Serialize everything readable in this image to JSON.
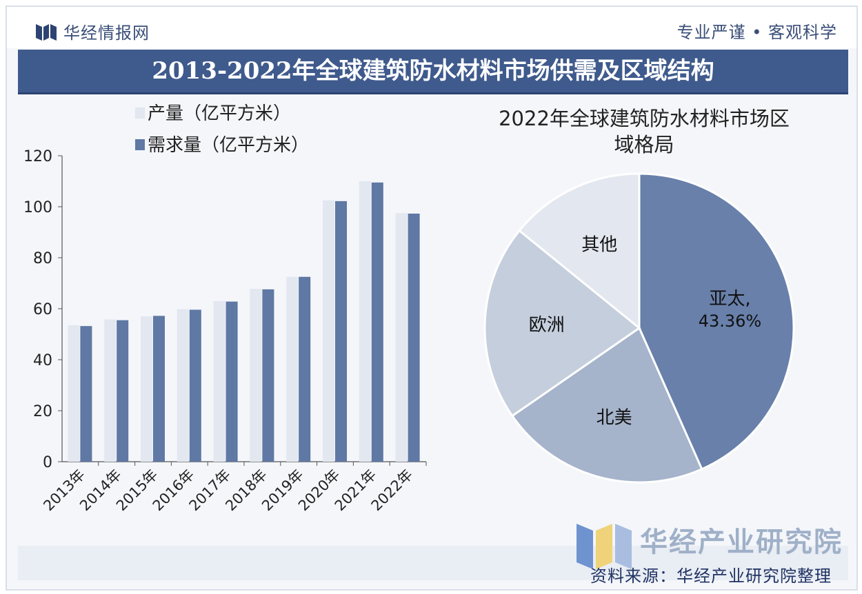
{
  "header": {
    "brand": "华经情报网",
    "slogan": "专业严谨 • 客观科学"
  },
  "title": "2013-2022年全球建筑防水材料市场供需及区域结构",
  "footer": {
    "brand": "华经产业研究院",
    "source": "资料来源：华经产业研究院整理"
  },
  "colors": {
    "title_bg": "#3f5a8c",
    "production": "#e2e7f0",
    "demand": "#5f78a4",
    "pie_apac": "#6880aa",
    "pie_na": "#a5b3cb",
    "pie_eu": "#c5cedd",
    "pie_other": "#e3e7ef"
  },
  "chart_data": [
    {
      "type": "bar",
      "title": "",
      "legend": [
        "产量（亿平方米）",
        "需求量（亿平方米）"
      ],
      "categories": [
        "2013年",
        "2014年",
        "2015年",
        "2016年",
        "2017年",
        "2018年",
        "2019年",
        "2020年",
        "2021年",
        "2022年"
      ],
      "series": [
        {
          "name": "产量（亿平方米）",
          "values": [
            53.5,
            55.8,
            57.0,
            59.8,
            63.0,
            67.8,
            72.5,
            102.5,
            110.0,
            97.5
          ]
        },
        {
          "name": "需求量（亿平方米）",
          "values": [
            53.2,
            55.5,
            57.2,
            59.6,
            62.8,
            67.6,
            72.5,
            102.2,
            109.5,
            97.3
          ]
        }
      ],
      "yticks": [
        0,
        20,
        40,
        60,
        80,
        100,
        120
      ],
      "ylim": [
        0,
        120
      ],
      "grid": false,
      "legend_position": "top-left"
    },
    {
      "type": "pie",
      "title": "2022年全球建筑防水材料市场区域格局",
      "title_lines": [
        "2022年全球建筑防水材料市场区",
        "域格局"
      ],
      "slices": [
        {
          "label": "亚太",
          "value": 43.36,
          "display": "43.36%"
        },
        {
          "label": "北美",
          "value": 22.0
        },
        {
          "label": "欧洲",
          "value": 20.5
        },
        {
          "label": "其他",
          "value": 14.14
        }
      ]
    }
  ]
}
